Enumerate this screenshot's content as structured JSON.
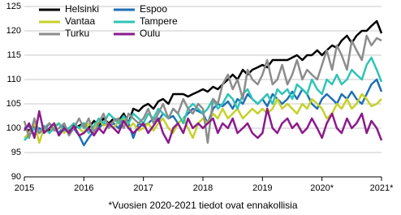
{
  "chart_data": {
    "type": "line",
    "footnote": "*Vuosien 2020-2021 tiedot ovat ennakollisia",
    "x": [
      2015,
      2015.08,
      2015.17,
      2015.25,
      2015.33,
      2015.42,
      2015.5,
      2015.58,
      2015.67,
      2015.75,
      2015.83,
      2015.92,
      2016,
      2016.08,
      2016.17,
      2016.25,
      2016.33,
      2016.42,
      2016.5,
      2016.58,
      2016.67,
      2016.75,
      2016.83,
      2016.92,
      2017,
      2017.08,
      2017.17,
      2017.25,
      2017.33,
      2017.42,
      2017.5,
      2017.58,
      2017.67,
      2017.75,
      2017.83,
      2017.92,
      2018,
      2018.08,
      2018.17,
      2018.25,
      2018.33,
      2018.42,
      2018.5,
      2018.58,
      2018.67,
      2018.75,
      2018.83,
      2018.92,
      2019,
      2019.08,
      2019.17,
      2019.25,
      2019.33,
      2019.42,
      2019.5,
      2019.58,
      2019.67,
      2019.75,
      2019.83,
      2019.92,
      2020,
      2020.08,
      2020.17,
      2020.25,
      2020.33,
      2020.42,
      2020.5,
      2020.58,
      2020.67,
      2020.75,
      2020.83,
      2020.92,
      2021
    ],
    "series": [
      {
        "name": "Helsinki",
        "color": "#000000",
        "values": [
          100,
          99.5,
          100.5,
          99,
          100,
          99.5,
          100,
          99,
          100,
          99.5,
          100,
          100.5,
          101,
          100,
          101.5,
          100.5,
          102,
          101,
          102,
          101.5,
          103,
          101,
          104,
          103.5,
          104.5,
          105,
          104,
          105.5,
          106,
          105,
          107,
          107,
          107,
          106.5,
          107,
          107.5,
          108,
          107.5,
          108.5,
          108,
          109,
          110,
          111,
          110,
          112,
          111,
          112,
          112.5,
          113,
          112.5,
          114,
          114,
          114,
          114,
          114.5,
          115,
          114,
          115,
          115,
          116,
          115,
          116,
          117,
          116.5,
          118,
          119,
          117.5,
          119,
          120,
          120,
          121,
          122,
          119.5
        ]
      },
      {
        "name": "Espoo",
        "color": "#1f6fb4",
        "values": [
          100,
          100.5,
          98.5,
          100,
          99.5,
          101,
          100,
          99,
          100.5,
          99.5,
          100,
          98.5,
          96.5,
          98,
          99.5,
          100,
          101,
          100.5,
          101,
          100,
          102,
          101,
          98,
          101,
          100.5,
          101,
          102,
          101.5,
          103,
          102,
          102.5,
          101,
          102,
          103,
          104,
          103.5,
          103,
          101,
          104,
          105,
          104.5,
          105.5,
          104,
          106,
          105,
          107,
          106,
          105,
          106,
          104.5,
          107,
          106,
          105,
          106,
          107.5,
          106,
          108,
          107,
          105,
          104,
          106,
          107,
          106,
          105,
          107,
          106,
          107.5,
          106,
          105,
          107,
          109,
          110,
          107.5
        ]
      },
      {
        "name": "Vantaa",
        "color": "#c5d12a",
        "values": [
          98,
          99,
          101,
          97,
          100,
          99,
          100.5,
          101,
          99,
          100,
          101,
          100,
          99,
          101,
          100,
          102,
          100.5,
          101,
          100,
          101.5,
          102,
          100,
          101,
          99.5,
          100,
          101,
          99.5,
          101,
          102,
          100,
          99,
          101,
          102,
          100,
          98,
          101,
          102,
          101,
          103,
          102,
          104,
          102,
          103,
          104,
          102,
          103,
          104,
          103,
          104,
          103,
          104,
          106,
          104,
          105,
          104,
          103,
          105,
          104,
          106,
          105,
          104,
          102,
          103,
          105,
          104,
          106,
          104,
          105,
          107,
          106,
          104.5,
          105,
          106
        ]
      },
      {
        "name": "Tampere",
        "color": "#2ec4b6",
        "values": [
          97.5,
          98.5,
          100,
          99,
          100.5,
          99,
          100,
          101,
          99.5,
          100,
          101,
          100,
          101,
          99,
          100.5,
          102,
          101,
          103,
          102,
          101,
          102.5,
          101,
          103,
          102,
          101,
          103,
          102,
          104,
          103,
          102,
          104,
          103,
          101,
          104,
          105,
          104,
          103,
          104,
          106,
          104,
          105,
          107,
          106,
          104,
          107,
          108,
          106,
          105,
          106,
          107,
          105,
          108,
          107,
          108,
          106,
          109,
          108,
          107,
          110,
          108,
          107,
          110,
          109,
          111,
          109,
          110,
          112,
          111,
          110,
          113,
          114.5,
          112,
          109.5
        ]
      },
      {
        "name": "Turku",
        "color": "#8c8c8c",
        "values": [
          101.5,
          98,
          102,
          99,
          100,
          101,
          99.5,
          100,
          101,
          98.5,
          100,
          102,
          100,
          102,
          99,
          101,
          103,
          100,
          101.5,
          102,
          100,
          103,
          102,
          101,
          102,
          104,
          101,
          103,
          105,
          102,
          104,
          103,
          106,
          104,
          103,
          105,
          104,
          97,
          106,
          105,
          109,
          111,
          108,
          110,
          106,
          112,
          110,
          109,
          111,
          114,
          109,
          110,
          113,
          109,
          111,
          114,
          110,
          112,
          111,
          110,
          113,
          116,
          112,
          117,
          115,
          112,
          118,
          116,
          114,
          119,
          117,
          118.5,
          118
        ]
      },
      {
        "name": "Oulu",
        "color": "#8b1a8b",
        "values": [
          99.5,
          101,
          98,
          103.5,
          99,
          100,
          101,
          98.5,
          100,
          99,
          100.5,
          98.5,
          99,
          100,
          98.5,
          100,
          99,
          101,
          100,
          99,
          101.5,
          100,
          99,
          100,
          101,
          99,
          100.5,
          102,
          99,
          97,
          100,
          101,
          99,
          102,
          100,
          101,
          100,
          101,
          102,
          99,
          101,
          100,
          102,
          99,
          100,
          101,
          99,
          98,
          99,
          104,
          100,
          99,
          101,
          102,
          100,
          101,
          99,
          100,
          102,
          100,
          98,
          101,
          103,
          100,
          99,
          102,
          100,
          101,
          103,
          99,
          101.5,
          100,
          97.5
        ]
      }
    ],
    "xlim": [
      2015,
      2021
    ],
    "xticks": [
      2015,
      2016,
      2017,
      2018,
      2019,
      {
        "value": 2020,
        "label": "2020*"
      },
      {
        "value": 2021,
        "label": "2021*"
      }
    ],
    "ylim": [
      90,
      125
    ],
    "yticks": [
      90,
      95,
      100,
      105,
      110,
      115,
      120,
      125
    ],
    "grid": true,
    "legend": "top-left"
  }
}
